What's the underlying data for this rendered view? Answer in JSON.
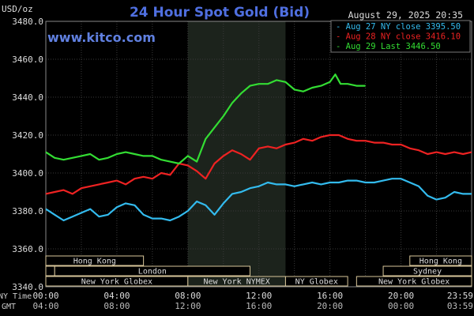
{
  "chart_data": {
    "type": "line",
    "title": "24 Hour Spot Gold (Bid)",
    "watermark": "www.kitco.com",
    "datetime": "August 29, 2025 20:35",
    "ylabel": "USD/oz",
    "ylim": [
      3340,
      3480
    ],
    "y_ticks": [
      "3480.0",
      "3460.0",
      "3440.0",
      "3420.0",
      "3400.0",
      "3380.0",
      "3360.0",
      "3340.0"
    ],
    "x_ticks_ny": [
      "00:00",
      "04:00",
      "08:00",
      "12:00",
      "16:00",
      "20:00",
      "23:59"
    ],
    "x_ticks_gmt": [
      "04:00",
      "08:00",
      "12:00",
      "16:00",
      "20:00",
      "00:00",
      "03:59"
    ],
    "x_label_ny": "NY Time",
    "x_label_gmt": "GMT",
    "grid": true,
    "legend_position": "top-right",
    "highlight_session": "New York NYMEX",
    "series": [
      {
        "name": "Aug 27 NY close 3395.50",
        "color": "#33bbee",
        "x": [
          0,
          0.5,
          1,
          1.5,
          2,
          2.5,
          3,
          3.5,
          4,
          4.5,
          5,
          5.5,
          6,
          6.5,
          7,
          7.5,
          8,
          8.5,
          9,
          9.5,
          10,
          10.5,
          11,
          11.5,
          12,
          12.5,
          13,
          13.5,
          14,
          14.5,
          15,
          15.5,
          16,
          16.5,
          17,
          17.5,
          18,
          18.5,
          19,
          19.5,
          20,
          20.5,
          21,
          21.5,
          22,
          22.5,
          23,
          23.5,
          23.98
        ],
        "values": [
          3381,
          3378,
          3375,
          3377,
          3379,
          3381,
          3377,
          3378,
          3382,
          3384,
          3383,
          3378,
          3376,
          3376,
          3375,
          3377,
          3380,
          3385,
          3383,
          3378,
          3384,
          3389,
          3390,
          3392,
          3393,
          3395,
          3394,
          3394,
          3393,
          3394,
          3395,
          3394,
          3395,
          3395,
          3396,
          3396,
          3395,
          3395,
          3396,
          3397,
          3397,
          3395,
          3393,
          3388,
          3386,
          3387,
          3390,
          3389,
          3389
        ]
      },
      {
        "name": "Aug 28 NY close 3416.10",
        "color": "#ee2222",
        "x": [
          0,
          0.5,
          1,
          1.5,
          2,
          2.5,
          3,
          3.5,
          4,
          4.5,
          5,
          5.5,
          6,
          6.5,
          7,
          7.5,
          8,
          8.5,
          9,
          9.5,
          10,
          10.5,
          11,
          11.5,
          12,
          12.5,
          13,
          13.5,
          14,
          14.5,
          15,
          15.5,
          16,
          16.5,
          17,
          17.5,
          18,
          18.5,
          19,
          19.5,
          20,
          20.5,
          21,
          21.5,
          22,
          22.5,
          23,
          23.5,
          23.98
        ],
        "values": [
          3389,
          3390,
          3391,
          3389,
          3392,
          3393,
          3394,
          3395,
          3396,
          3394,
          3397,
          3398,
          3397,
          3400,
          3399,
          3405,
          3404,
          3401,
          3397,
          3405,
          3409,
          3412,
          3410,
          3407,
          3413,
          3414,
          3413,
          3415,
          3416,
          3418,
          3417,
          3419,
          3420,
          3420,
          3418,
          3417,
          3417,
          3416,
          3416,
          3415,
          3415,
          3413,
          3412,
          3410,
          3411,
          3410,
          3411,
          3410,
          3411
        ]
      },
      {
        "name": "Aug 29 Last 3446.50",
        "color": "#33dd33",
        "x": [
          0,
          0.5,
          1,
          1.5,
          2,
          2.5,
          3,
          3.5,
          4,
          4.5,
          5,
          5.5,
          6,
          6.5,
          7,
          7.5,
          8,
          8.5,
          9,
          9.5,
          10,
          10.5,
          11,
          11.5,
          12,
          12.5,
          13,
          13.5,
          14,
          14.5,
          15,
          15.5,
          16,
          16.3,
          16.6,
          17,
          17.5,
          18
        ],
        "values": [
          3411,
          3408,
          3407,
          3408,
          3409,
          3410,
          3407,
          3408,
          3410,
          3411,
          3410,
          3409,
          3409,
          3407,
          3406,
          3405,
          3409,
          3406,
          3418,
          3424,
          3430,
          3437,
          3442,
          3446,
          3447,
          3447,
          3449,
          3448,
          3444,
          3443,
          3445,
          3446,
          3448,
          3452,
          3447,
          3447,
          3446,
          3446
        ]
      }
    ],
    "sessions": [
      {
        "name": "Hong Kong",
        "row": 1,
        "start": 0,
        "end": 5.5
      },
      {
        "name": "Hong Kong",
        "row": 1,
        "start": 20.5,
        "end": 23.98
      },
      {
        "name": "London",
        "row": 2,
        "start": 0,
        "end": 0.5
      },
      {
        "name": "London",
        "row": 2,
        "start": 0.5,
        "end": 11.5
      },
      {
        "name": "Sydney",
        "row": 2,
        "start": 19,
        "end": 23.98
      },
      {
        "name": "New York Globex",
        "row": 3,
        "start": 0,
        "end": 8
      },
      {
        "name": "New York NYMEX",
        "row": 3,
        "start": 8,
        "end": 13.5
      },
      {
        "name": "NY Globex",
        "row": 3,
        "start": 13.5,
        "end": 17
      },
      {
        "name": "New York Globex",
        "row": 3,
        "start": 17.5,
        "end": 23.98
      }
    ]
  }
}
